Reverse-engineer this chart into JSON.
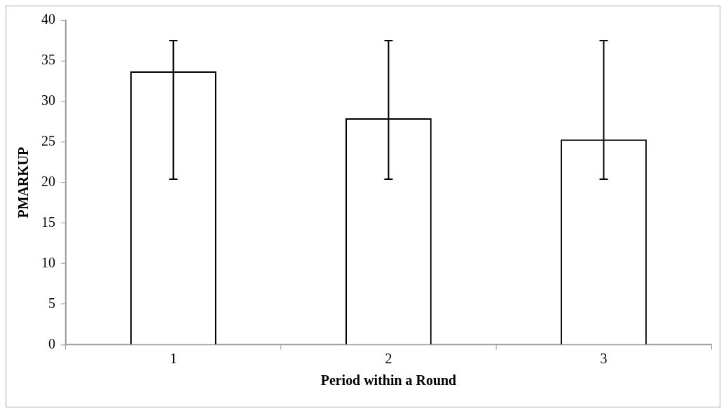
{
  "chart_data": {
    "type": "bar",
    "xlabel": "Period within a Round",
    "ylabel": "PMARKUP",
    "categories": [
      "1",
      "2",
      "3"
    ],
    "values": [
      33.7,
      27.9,
      25.3
    ],
    "errors": [
      [
        20.4,
        37.5
      ],
      [
        20.4,
        37.5
      ],
      [
        20.4,
        37.5
      ]
    ],
    "color": "#ffffff",
    "ylim": [
      0,
      40
    ],
    "yticks": [
      0,
      5,
      10,
      15,
      20,
      25,
      30,
      35,
      40
    ]
  }
}
